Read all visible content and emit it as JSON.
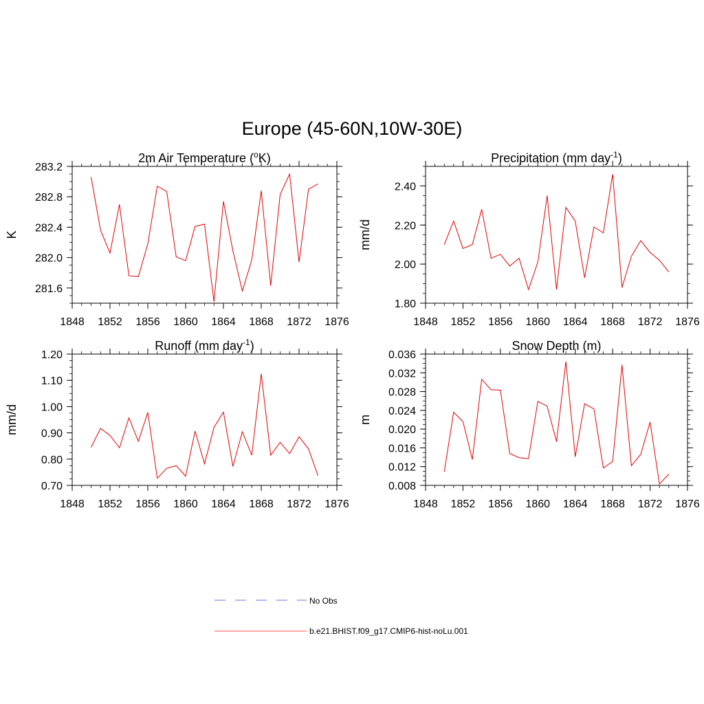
{
  "title": "Europe (45-60N,10W-30E)",
  "legend": [
    {
      "label": "No Obs",
      "color": "#9aa0f0",
      "dash": true
    },
    {
      "label": "b.e21.BHIST.f09_g17.CMIP6-hist-noLu.001",
      "color": "#ff7070",
      "dash": false
    }
  ],
  "chart_data": [
    {
      "type": "line",
      "title_main": "2m Air Temperature (",
      "title_sup": "o",
      "title_tail": "K)",
      "ylabel": "K",
      "xlim": [
        1848,
        1876
      ],
      "ylim": [
        281.4,
        283.2
      ],
      "xticks": [
        "1848",
        "1852",
        "1856",
        "1860",
        "1864",
        "1868",
        "1872",
        "1876"
      ],
      "yticks": [
        "281.6",
        "282.0",
        "282.4",
        "282.8",
        "283.2"
      ],
      "series": [
        {
          "color": "#e00000",
          "x": [
            1850,
            1851,
            1852,
            1853,
            1854,
            1855,
            1856,
            1857,
            1858,
            1859,
            1860,
            1861,
            1862,
            1863,
            1864,
            1865,
            1866,
            1867,
            1868,
            1869,
            1870,
            1871,
            1872,
            1873,
            1874
          ],
          "y": [
            283.06,
            282.36,
            282.06,
            282.7,
            281.76,
            281.75,
            282.18,
            282.94,
            282.87,
            282.01,
            281.96,
            282.41,
            282.44,
            281.42,
            282.74,
            282.09,
            281.56,
            281.97,
            282.88,
            281.63,
            282.83,
            283.1,
            281.94,
            282.9,
            282.97
          ]
        }
      ]
    },
    {
      "type": "line",
      "title_main": "Precipitation (mm day",
      "title_sup": "-1",
      "title_tail": ")",
      "ylabel": "mm/d",
      "xlim": [
        1848,
        1876
      ],
      "ylim": [
        1.8,
        2.5
      ],
      "xticks": [
        "1848",
        "1852",
        "1856",
        "1860",
        "1864",
        "1868",
        "1872",
        "1876"
      ],
      "yticks": [
        "1.80",
        "2.00",
        "2.20",
        "2.40"
      ],
      "series": [
        {
          "color": "#e00000",
          "x": [
            1850,
            1851,
            1852,
            1853,
            1854,
            1855,
            1856,
            1857,
            1858,
            1859,
            1860,
            1861,
            1862,
            1863,
            1864,
            1865,
            1866,
            1867,
            1868,
            1869,
            1870,
            1871,
            1872,
            1873,
            1874
          ],
          "y": [
            2.1,
            2.22,
            2.08,
            2.1,
            2.28,
            2.03,
            2.05,
            1.99,
            2.03,
            1.87,
            2.01,
            2.35,
            1.87,
            2.29,
            2.22,
            1.93,
            2.19,
            2.16,
            2.46,
            1.88,
            2.04,
            2.12,
            2.06,
            2.02,
            1.96
          ]
        }
      ]
    },
    {
      "type": "line",
      "title_main": "Runoff (mm day",
      "title_sup": "-1",
      "title_tail": ")",
      "ylabel": "mm/d",
      "xlim": [
        1848,
        1876
      ],
      "ylim": [
        0.7,
        1.2
      ],
      "xticks": [
        "1848",
        "1852",
        "1856",
        "1860",
        "1864",
        "1868",
        "1872",
        "1876"
      ],
      "yticks": [
        "0.70",
        "0.80",
        "0.90",
        "1.00",
        "1.10",
        "1.20"
      ],
      "series": [
        {
          "color": "#e00000",
          "x": [
            1850,
            1851,
            1852,
            1853,
            1854,
            1855,
            1856,
            1857,
            1858,
            1859,
            1860,
            1861,
            1862,
            1863,
            1864,
            1865,
            1866,
            1867,
            1868,
            1869,
            1870,
            1871,
            1872,
            1873,
            1874
          ],
          "y": [
            0.845,
            0.917,
            0.89,
            0.843,
            0.957,
            0.868,
            0.978,
            0.727,
            0.765,
            0.775,
            0.735,
            0.907,
            0.782,
            0.921,
            0.979,
            0.772,
            0.904,
            0.815,
            1.125,
            0.815,
            0.864,
            0.821,
            0.885,
            0.839,
            0.737
          ]
        }
      ]
    },
    {
      "type": "line",
      "title_main": "Snow Depth (m)",
      "title_sup": "",
      "title_tail": "",
      "ylabel": "m",
      "xlim": [
        1848,
        1876
      ],
      "ylim": [
        0.008,
        0.036
      ],
      "xticks": [
        "1848",
        "1852",
        "1856",
        "1860",
        "1864",
        "1868",
        "1872",
        "1876"
      ],
      "yticks": [
        "0.008",
        "0.012",
        "0.016",
        "0.020",
        "0.024",
        "0.028",
        "0.032",
        "0.036"
      ],
      "series": [
        {
          "color": "#e00000",
          "x": [
            1850,
            1851,
            1852,
            1853,
            1854,
            1855,
            1856,
            1857,
            1858,
            1859,
            1860,
            1861,
            1862,
            1863,
            1864,
            1865,
            1866,
            1867,
            1868,
            1869,
            1870,
            1871,
            1872,
            1873,
            1874
          ],
          "y": [
            0.0109,
            0.0236,
            0.0216,
            0.0135,
            0.0306,
            0.0284,
            0.0283,
            0.0148,
            0.0139,
            0.0137,
            0.0259,
            0.0249,
            0.0173,
            0.0344,
            0.0141,
            0.0254,
            0.0243,
            0.0117,
            0.0131,
            0.0337,
            0.0122,
            0.0146,
            0.0215,
            0.0083,
            0.0104
          ]
        }
      ]
    }
  ]
}
